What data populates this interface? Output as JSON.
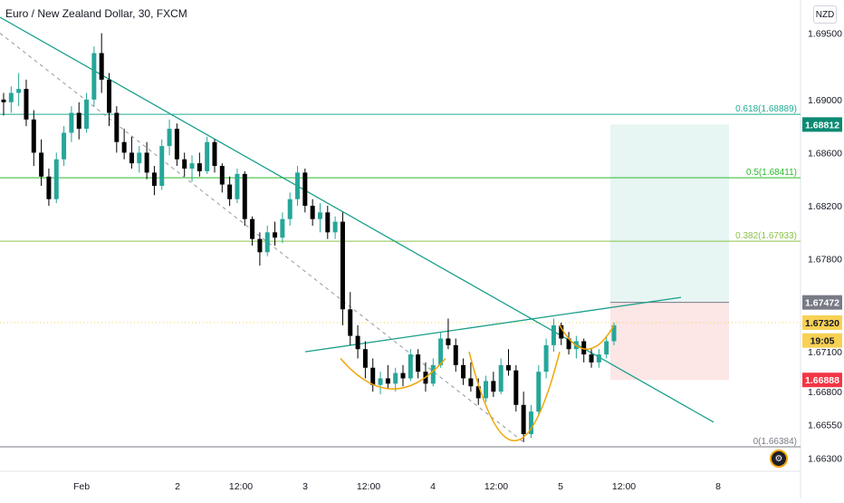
{
  "header": {
    "title": "Euro / New Zealand Dollar, 30, FXCM"
  },
  "currency_button": "NZD",
  "settings_icon": "gear-icon",
  "colors": {
    "up": "#26a69a",
    "down": "#000000",
    "trendline": "#1aa08a",
    "fib618": "#22ab94",
    "fib5": "#2cba2c",
    "fib382": "#8bc34a",
    "fib0": "#787b86",
    "arc": "#f0a500",
    "dashed": "#9598a1",
    "target_zone": "#e7f5f3",
    "stop_zone": "#fde6e6",
    "price_current": "#f7d154",
    "price_tp": "#0b8a73",
    "price_sl": "#f23645",
    "price_entry": "#787b86"
  },
  "chart_data": {
    "type": "candlestick",
    "ylim": [
      1.662,
      1.6975
    ],
    "y_ticks": [
      1.663,
      1.6655,
      1.668,
      1.671,
      1.678,
      1.682,
      1.686,
      1.69,
      1.695
    ],
    "y_tick_labels": [
      "1.66300",
      "1.66550",
      "1.66800",
      "1.67100",
      "1.67800",
      "1.68200",
      "1.68600",
      "1.69000",
      "1.69500"
    ],
    "x_tick_labels": [
      "Feb",
      "2",
      "12:00",
      "3",
      "12:00",
      "4",
      "12:00",
      "5",
      "12:00",
      "8"
    ],
    "fib_levels": [
      {
        "label": "0.618(1.68889)",
        "value": 1.68889
      },
      {
        "label": "0.5(1.68411)",
        "value": 1.68411
      },
      {
        "label": "0.382(1.67933)",
        "value": 1.67933
      },
      {
        "label": "0(1.66384)",
        "value": 1.66384
      }
    ],
    "price_labels": [
      {
        "label": "1.68812",
        "value": 1.68812,
        "role": "take-profit"
      },
      {
        "label": "1.67472",
        "value": 1.67472,
        "role": "entry"
      },
      {
        "label": "1.67320",
        "value": 1.6732,
        "role": "current"
      },
      {
        "label": "19:05",
        "value": 1.67185,
        "role": "countdown"
      },
      {
        "label": "1.66888",
        "value": 1.66888,
        "role": "stop-loss"
      }
    ],
    "position": {
      "entry": 1.67472,
      "target": 1.68812,
      "stop": 1.66888
    },
    "candles": [
      [
        1.69,
        1.6905,
        1.6888,
        1.6898
      ],
      [
        1.6898,
        1.691,
        1.689,
        1.6905
      ],
      [
        1.6905,
        1.692,
        1.6895,
        1.6908
      ],
      [
        1.6908,
        1.6915,
        1.688,
        1.6885
      ],
      [
        1.6885,
        1.6892,
        1.685,
        1.686
      ],
      [
        1.686,
        1.687,
        1.6835,
        1.6842
      ],
      [
        1.6842,
        1.6848,
        1.682,
        1.6825
      ],
      [
        1.6825,
        1.686,
        1.6822,
        1.6855
      ],
      [
        1.6855,
        1.688,
        1.685,
        1.6875
      ],
      [
        1.6875,
        1.6895,
        1.6868,
        1.689
      ],
      [
        1.689,
        1.6898,
        1.687,
        1.6878
      ],
      [
        1.6878,
        1.6905,
        1.6875,
        1.69
      ],
      [
        1.69,
        1.694,
        1.6895,
        1.6935
      ],
      [
        1.6935,
        1.695,
        1.6905,
        1.6915
      ],
      [
        1.6915,
        1.692,
        1.688,
        1.689
      ],
      [
        1.689,
        1.6895,
        1.686,
        1.6868
      ],
      [
        1.6868,
        1.6878,
        1.6855,
        1.686
      ],
      [
        1.686,
        1.6872,
        1.6848,
        1.6852
      ],
      [
        1.6852,
        1.6865,
        1.6845,
        1.686
      ],
      [
        1.686,
        1.6868,
        1.684,
        1.6845
      ],
      [
        1.6845,
        1.685,
        1.6828,
        1.6835
      ],
      [
        1.6835,
        1.687,
        1.6832,
        1.6865
      ],
      [
        1.6865,
        1.6885,
        1.6858,
        1.6878
      ],
      [
        1.6878,
        1.6882,
        1.685,
        1.6855
      ],
      [
        1.6855,
        1.686,
        1.6842,
        1.6848
      ],
      [
        1.6848,
        1.6858,
        1.6838,
        1.6852
      ],
      [
        1.6852,
        1.686,
        1.6842,
        1.6846
      ],
      [
        1.6846,
        1.6872,
        1.6844,
        1.6868
      ],
      [
        1.6868,
        1.687,
        1.6845,
        1.685
      ],
      [
        1.685,
        1.6852,
        1.683,
        1.6836
      ],
      [
        1.6836,
        1.6842,
        1.682,
        1.6825
      ],
      [
        1.6825,
        1.6848,
        1.6822,
        1.6844
      ],
      [
        1.6844,
        1.6846,
        1.6805,
        1.681
      ],
      [
        1.681,
        1.6812,
        1.679,
        1.6795
      ],
      [
        1.6795,
        1.68,
        1.6775,
        1.6785
      ],
      [
        1.6785,
        1.6805,
        1.6782,
        1.68
      ],
      [
        1.68,
        1.6808,
        1.679,
        1.6796
      ],
      [
        1.6796,
        1.6815,
        1.6792,
        1.681
      ],
      [
        1.681,
        1.683,
        1.6805,
        1.6825
      ],
      [
        1.6825,
        1.685,
        1.682,
        1.6845
      ],
      [
        1.6845,
        1.6848,
        1.6815,
        1.682
      ],
      [
        1.682,
        1.6825,
        1.6805,
        1.681
      ],
      [
        1.681,
        1.6822,
        1.68,
        1.6815
      ],
      [
        1.6815,
        1.682,
        1.6795,
        1.68
      ],
      [
        1.68,
        1.6812,
        1.6795,
        1.6808
      ],
      [
        1.6808,
        1.6815,
        1.673,
        1.6742
      ],
      [
        1.6742,
        1.6755,
        1.6715,
        1.6722
      ],
      [
        1.6722,
        1.673,
        1.6705,
        1.6712
      ],
      [
        1.6712,
        1.6718,
        1.669,
        1.6698
      ],
      [
        1.6698,
        1.6705,
        1.668,
        1.6685
      ],
      [
        1.6685,
        1.6695,
        1.6678,
        1.669
      ],
      [
        1.669,
        1.67,
        1.6682,
        1.6686
      ],
      [
        1.6686,
        1.6698,
        1.668,
        1.6694
      ],
      [
        1.6694,
        1.67,
        1.6684,
        1.669
      ],
      [
        1.669,
        1.6712,
        1.6688,
        1.6708
      ],
      [
        1.6708,
        1.6712,
        1.669,
        1.6695
      ],
      [
        1.6695,
        1.6702,
        1.668,
        1.6686
      ],
      [
        1.6686,
        1.6705,
        1.6684,
        1.67
      ],
      [
        1.67,
        1.6725,
        1.6698,
        1.672
      ],
      [
        1.672,
        1.6735,
        1.6712,
        1.6715
      ],
      [
        1.6715,
        1.672,
        1.6695,
        1.67
      ],
      [
        1.67,
        1.6705,
        1.6685,
        1.669
      ],
      [
        1.669,
        1.6702,
        1.668,
        1.6684
      ],
      [
        1.6684,
        1.669,
        1.667,
        1.6675
      ],
      [
        1.6675,
        1.6692,
        1.6672,
        1.6688
      ],
      [
        1.6688,
        1.6695,
        1.6676,
        1.668
      ],
      [
        1.668,
        1.6705,
        1.6678,
        1.67
      ],
      [
        1.67,
        1.6712,
        1.6692,
        1.6696
      ],
      [
        1.6696,
        1.67,
        1.6665,
        1.667
      ],
      [
        1.667,
        1.668,
        1.6642,
        1.6648
      ],
      [
        1.6648,
        1.667,
        1.6645,
        1.6665
      ],
      [
        1.6665,
        1.67,
        1.6662,
        1.6695
      ],
      [
        1.6695,
        1.672,
        1.669,
        1.6715
      ],
      [
        1.6715,
        1.6735,
        1.671,
        1.673
      ],
      [
        1.673,
        1.6732,
        1.6715,
        1.672
      ],
      [
        1.672,
        1.6725,
        1.6708,
        1.6712
      ],
      [
        1.6712,
        1.6722,
        1.6705,
        1.6718
      ],
      [
        1.6718,
        1.672,
        1.6702,
        1.6708
      ],
      [
        1.6708,
        1.6712,
        1.6698,
        1.6702
      ],
      [
        1.6702,
        1.6712,
        1.6698,
        1.6708
      ],
      [
        1.6708,
        1.6722,
        1.6705,
        1.6718
      ],
      [
        1.6718,
        1.6732,
        1.6715,
        1.673
      ]
    ]
  }
}
